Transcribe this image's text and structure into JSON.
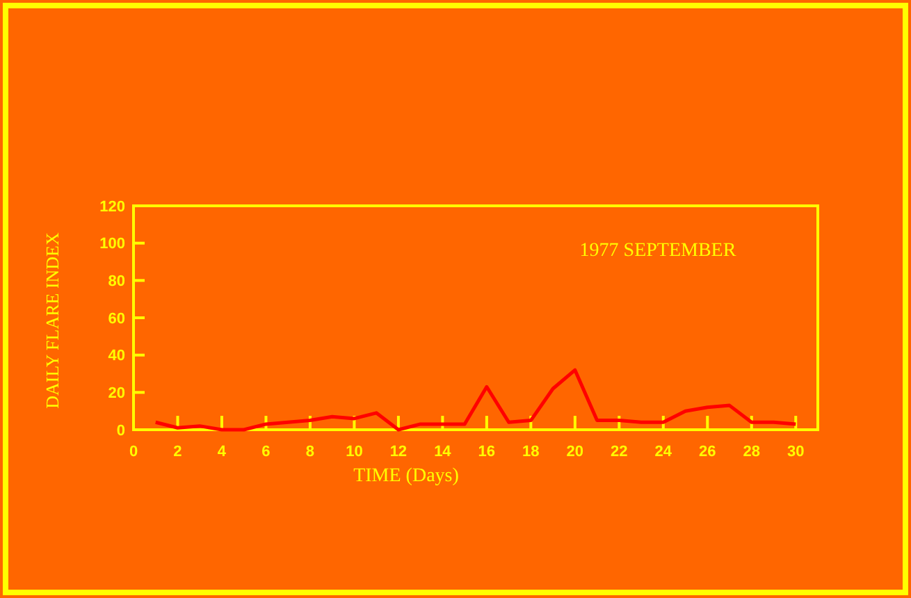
{
  "chart_data": {
    "type": "line",
    "title": "1977 SEPTEMBER",
    "xlabel": "TIME (Days)",
    "ylabel": "DAILY FLARE INDEX",
    "x": [
      1,
      2,
      3,
      4,
      5,
      6,
      7,
      8,
      9,
      10,
      11,
      12,
      13,
      14,
      15,
      16,
      17,
      18,
      19,
      20,
      21,
      22,
      23,
      24,
      25,
      26,
      27,
      28,
      29,
      30
    ],
    "series": [
      {
        "color": "#ff0000",
        "values": [
          4,
          1,
          2,
          0,
          0,
          3,
          4,
          5,
          7,
          6,
          9,
          0,
          3,
          3,
          3,
          23,
          4,
          5,
          22,
          32,
          5,
          5,
          4,
          4,
          10,
          12,
          13,
          4,
          4,
          3
        ]
      }
    ],
    "xlim": [
      0,
      31
    ],
    "xticks": [
      0,
      2,
      4,
      6,
      8,
      10,
      12,
      14,
      16,
      18,
      20,
      22,
      24,
      26,
      28,
      30
    ],
    "ylim": [
      0,
      120
    ],
    "yticks": [
      0,
      20,
      40,
      60,
      80,
      100,
      120
    ],
    "grid": false,
    "marker": "none",
    "line_style": "solid"
  }
}
